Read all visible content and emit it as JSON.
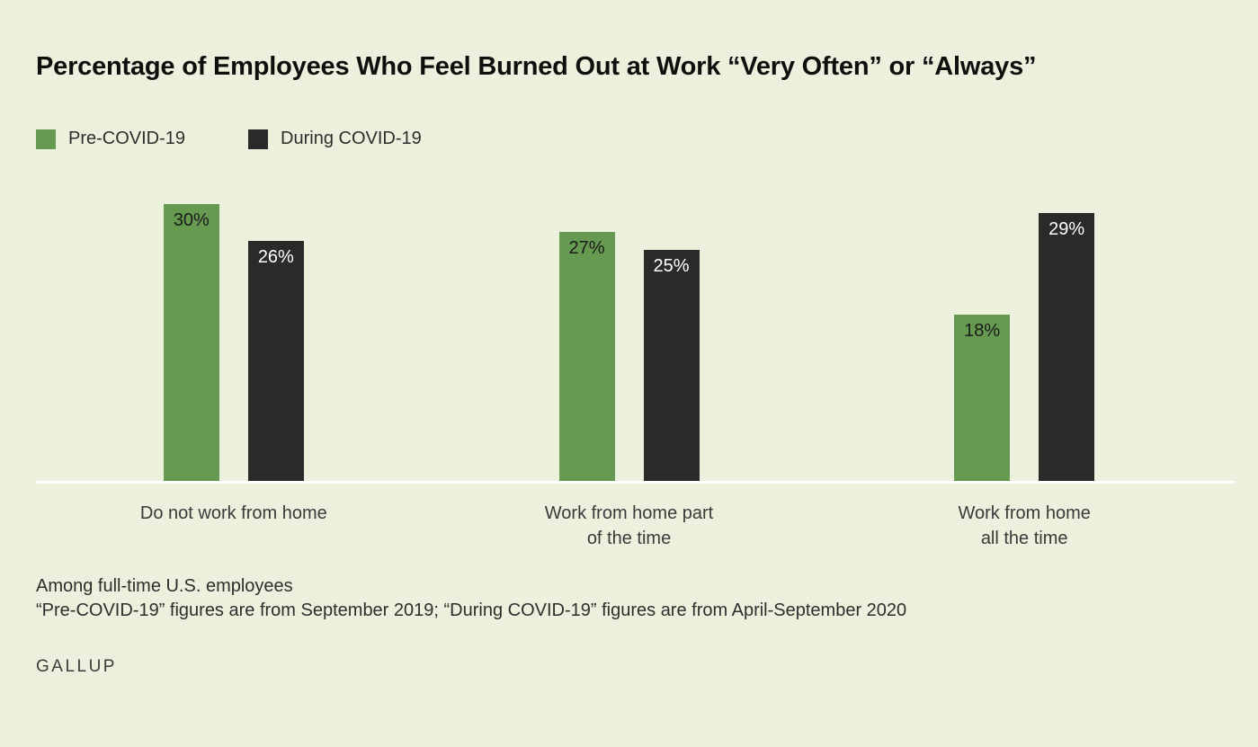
{
  "title": "Percentage of Employees Who Feel Burned Out at Work “Very Often” or “Always”",
  "chart_data": {
    "type": "bar",
    "title": "Percentage of Employees Who Feel Burned Out at Work “Very Often” or “Always”",
    "categories": [
      "Do not work from home",
      "Work from home part\nof the time",
      "Work from home\nall the time"
    ],
    "series": [
      {
        "name": "Pre-COVID-19",
        "color": "#669a51",
        "label_color": "#1b1b19",
        "values": [
          30,
          27,
          18
        ]
      },
      {
        "name": "During COVID-19",
        "color": "#2b2a28",
        "label_color": "#ffffff",
        "values": [
          26,
          25,
          29
        ]
      }
    ],
    "ylim": [
      0,
      30
    ],
    "value_suffix": "%",
    "xlabel": "",
    "ylabel": "",
    "grid": false,
    "legend_position": "top-left"
  },
  "footnotes": [
    "Among full-time U.S. employees",
    "“Pre-COVID-19” figures are from September 2019; “During COVID-19” figures are from April-September 2020"
  ],
  "source": "GALLUP",
  "colors": {
    "background": "#ebf1dd",
    "pre_covid_green": "#669a51",
    "during_covid_dark": "#2b2a28",
    "baseline_white": "#ffffff"
  }
}
